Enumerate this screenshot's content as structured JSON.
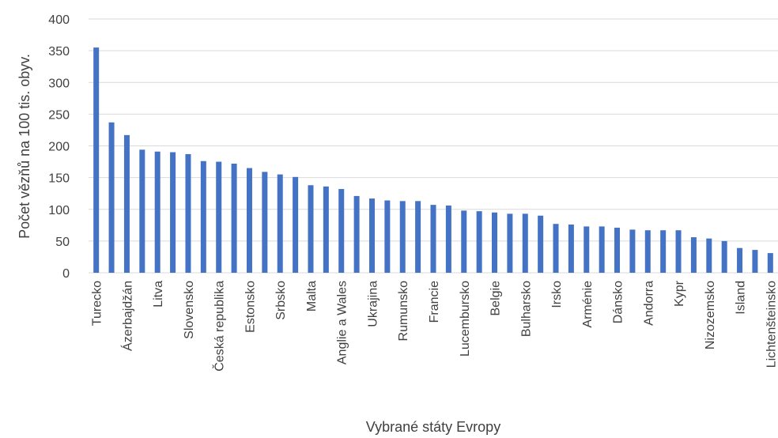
{
  "chart_data": {
    "type": "bar",
    "title": "",
    "xlabel": "Vybrané státy Evropy",
    "ylabel": "Počet vězňů na 100 tis. obyv.",
    "ylim": [
      0,
      400
    ],
    "yticks": [
      0,
      50,
      100,
      150,
      200,
      250,
      300,
      350,
      400
    ],
    "grid": true,
    "legend": "none",
    "colors": {
      "bar": "#4472c4",
      "grid": "#d9d9d9",
      "text": "#404040"
    },
    "categories": [
      "Turecko",
      "",
      "Ázerbajdžán",
      "",
      "Litva",
      "",
      "Slovensko",
      "",
      "Česká republika",
      "",
      "Estonsko",
      "",
      "Srbsko",
      "",
      "Malta",
      "",
      "Anglie a Wales",
      "",
      "Ukrajina",
      "",
      "Rumunsko",
      "",
      "Francie",
      "",
      "Lucembursko",
      "",
      "Belgie",
      "",
      "Bulharsko",
      "",
      "Irsko",
      "",
      "Arménie",
      "",
      "Dánsko",
      "",
      "Andorra",
      "",
      "Kypr",
      "",
      "Nizozemsko",
      "",
      "Island",
      "",
      "Lichtenšteinsko"
    ],
    "values": [
      355,
      237,
      217,
      194,
      191,
      190,
      187,
      176,
      175,
      172,
      165,
      159,
      155,
      151,
      138,
      136,
      132,
      121,
      117,
      114,
      113,
      113,
      107,
      106,
      98,
      97,
      95,
      93,
      93,
      90,
      77,
      76,
      73,
      73,
      71,
      68,
      67,
      67,
      67,
      56,
      54,
      50,
      39,
      36,
      31
    ]
  }
}
